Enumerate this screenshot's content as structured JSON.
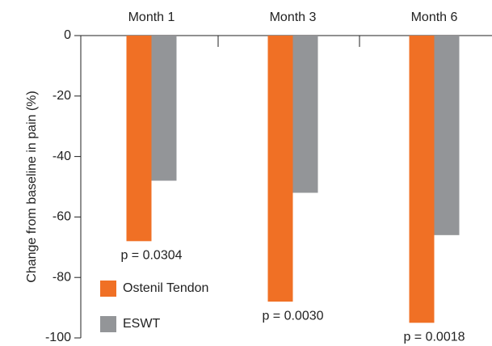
{
  "chart_data": {
    "type": "bar",
    "y_axis_label": "Change from baseline in pain (%)",
    "categories": [
      "Month 1",
      "Month 3",
      "Month 6"
    ],
    "series": [
      {
        "name": "Ostenil Tendon",
        "color": "#f07025",
        "values": [
          -68,
          -88,
          -95
        ]
      },
      {
        "name": "ESWT",
        "color": "#939598",
        "values": [
          -48,
          -52,
          -66
        ]
      }
    ],
    "annotations": [
      "p = 0.0304",
      "p = 0.0030",
      "p = 0.0018"
    ],
    "ylim": [
      -100,
      0
    ],
    "yticks": [
      0,
      -20,
      -40,
      -60,
      -80,
      -100
    ],
    "legend": "lower left"
  }
}
